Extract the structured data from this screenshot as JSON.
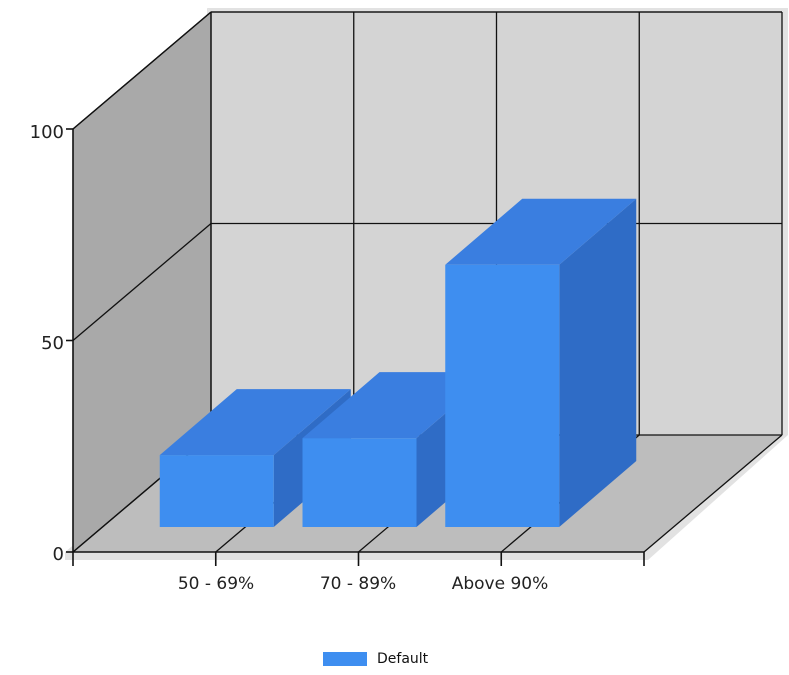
{
  "chart_data": {
    "type": "bar",
    "categories": [
      "50 - 69%",
      "70 - 89%",
      "Above 90%"
    ],
    "series": [
      {
        "name": "Default",
        "values": [
          17,
          21,
          62
        ]
      }
    ],
    "yticks": [
      "0",
      "50",
      "100"
    ],
    "ylim": [
      0,
      100
    ],
    "grid": true,
    "three_d": true,
    "legend_position": "bottom-center"
  },
  "colors": {
    "bar_front": "#3e8ef0",
    "bar_top": "#3a7ee0",
    "bar_side": "#2f6cc6",
    "back_wall": "#d4d4d4",
    "side_wall": "#a9a9a9",
    "floor": "#bdbdbd",
    "grid": "#111111"
  }
}
